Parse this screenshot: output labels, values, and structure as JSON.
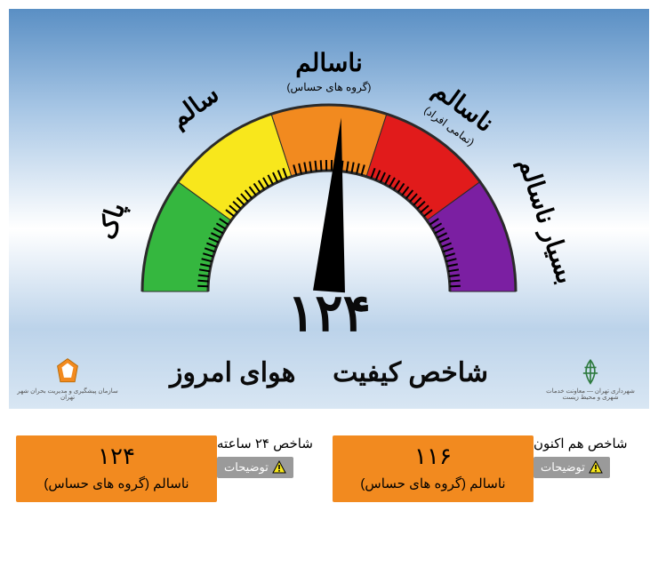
{
  "gauge": {
    "type": "semi-gauge",
    "segments": [
      {
        "label": "پاک",
        "sub": "",
        "color": "#35b73f",
        "start": 180,
        "end": 144
      },
      {
        "label": "سالم",
        "sub": "",
        "color": "#f8e71c",
        "start": 144,
        "end": 108
      },
      {
        "label": "ناسالم",
        "sub": "(گروه های حساس)",
        "color": "#f28a1f",
        "start": 108,
        "end": 72
      },
      {
        "label": "ناسالم",
        "sub": "(تمامی افراد)",
        "color": "#e11b1b",
        "start": 72,
        "end": 36
      },
      {
        "label": "بسیار ناسالم",
        "sub": "",
        "color": "#7b1fa2",
        "start": 36,
        "end": 0
      }
    ],
    "needle_angle_deg": 86,
    "needle_color": "#000000",
    "tick_color": "#000000",
    "outline_color": "#2a2a2a",
    "inner_radius": 136,
    "outer_radius": 210,
    "label_radius": 248,
    "label_fontsize": 28,
    "sub_fontsize": 12,
    "tick_count_per_seg": 15,
    "background": "sky"
  },
  "value": {
    "aqi_today": "۱۲۴",
    "title_r": "شاخص کیفیت",
    "title_l": "هوای امروز"
  },
  "footer": {
    "left_org": "سازمان پیشگیری و مدیریت بحران شهر تهران",
    "right_org": "شهرداری تهران — معاونت خدمات شهری و محیط زیست"
  },
  "bottom": {
    "now": {
      "header": "شاخص هم اکنون",
      "btn": "توضیحات",
      "value": "۱۱۶",
      "status": "ناسالم (گروه های حساس)",
      "card_color": "#f28a1f"
    },
    "day": {
      "header": "شاخص ۲۴ ساعته",
      "btn": "توضیحات",
      "value": "۱۲۴",
      "status": "ناسالم (گروه های حساس)",
      "card_color": "#f28a1f"
    },
    "btn_bg": "#9a9a9a",
    "btn_fg": "#ffffff",
    "warn_tri_fill": "#f8e71c",
    "warn_tri_stroke": "#000000"
  }
}
